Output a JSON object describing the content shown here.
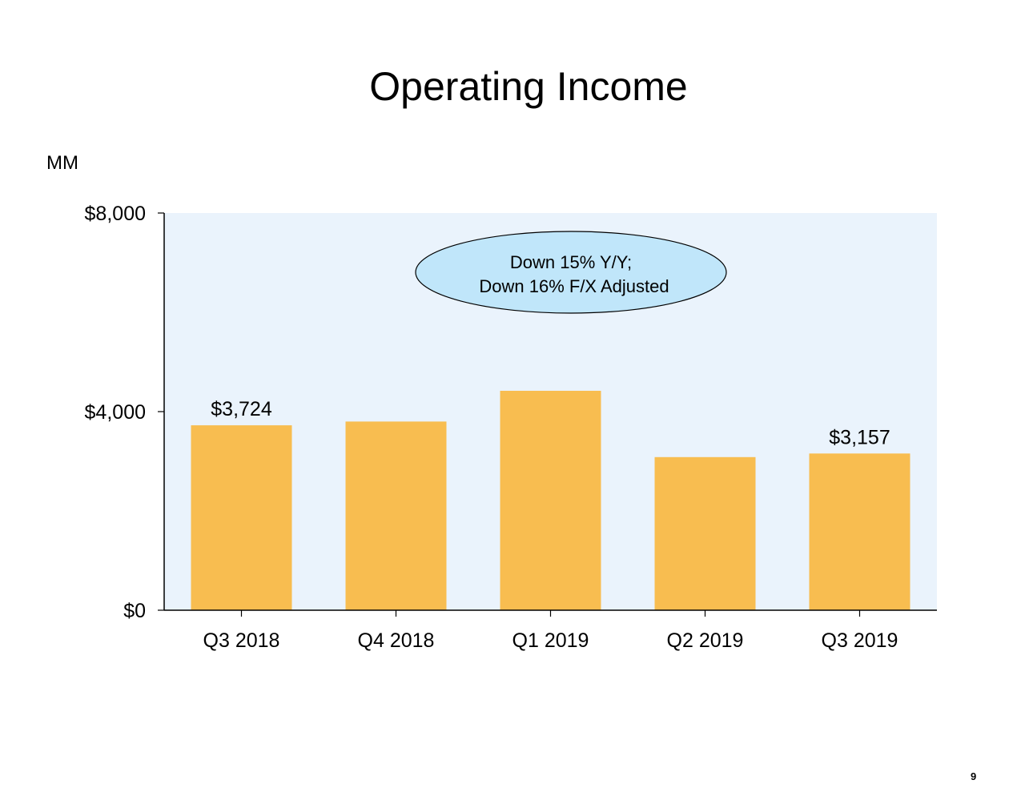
{
  "slide": {
    "title": "Operating Income",
    "unit": "MM",
    "page_number": "9"
  },
  "colors": {
    "bar": "#F8BD50",
    "plot_background": "#EAF3FC",
    "callout_fill": "#C0E6FA",
    "axis": "#000000"
  },
  "callout": {
    "line1": "Down 15% Y/Y;",
    "line2": "Down 16% F/X Adjusted"
  },
  "chart_data": {
    "type": "bar",
    "title": "Operating Income",
    "ylabel": "MM",
    "xlabel": "",
    "categories": [
      "Q3 2018",
      "Q4 2018",
      "Q1 2019",
      "Q2 2019",
      "Q3 2019"
    ],
    "values": [
      3724,
      3800,
      4420,
      3084,
      3157
    ],
    "ylim": [
      0,
      8000
    ],
    "yticks": [
      0,
      4000,
      8000
    ],
    "ytick_labels": [
      "$0",
      "$4,000",
      "$8,000"
    ],
    "data_labels": [
      "$3,724",
      "",
      "",
      "",
      "$3,157"
    ],
    "grid": false,
    "legend": "none"
  }
}
